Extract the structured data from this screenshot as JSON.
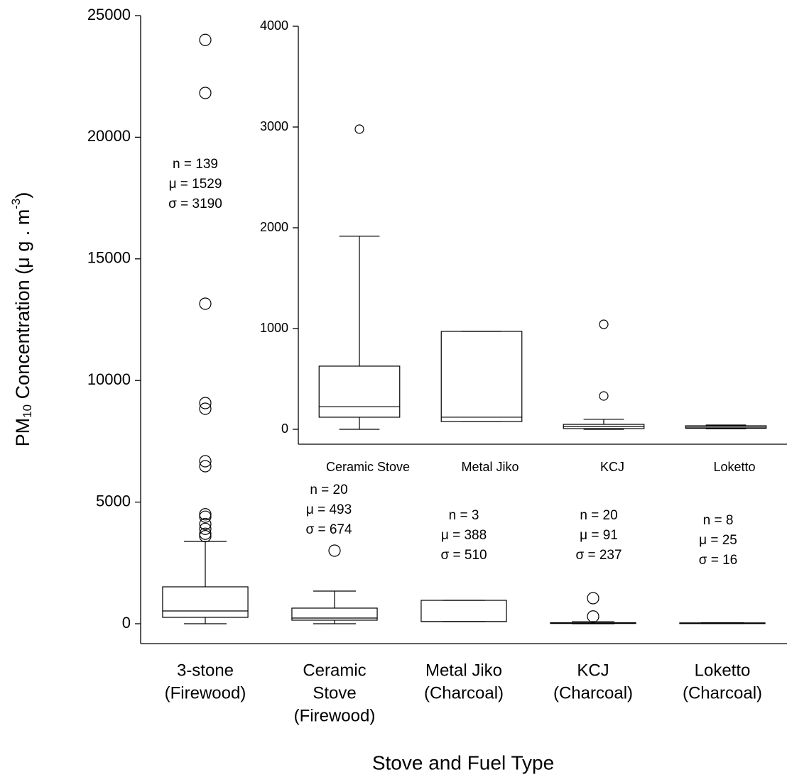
{
  "chart_data": [
    {
      "type": "box",
      "y_label": {
        "main": "PM",
        "sub": "10",
        "middle": " Concentration (μ g . m",
        "sup": "-3",
        "end": ")"
      },
      "x_label": "Stove and Fuel Type",
      "categories": [
        [
          "3-stone",
          "(Firewood)"
        ],
        [
          "Ceramic",
          "Stove",
          "(Firewood)"
        ],
        [
          "Metal Jiko",
          "(Charcoal)"
        ],
        [
          "KCJ",
          "(Charcoal)"
        ],
        [
          "Loketto",
          "(Charcoal)"
        ]
      ],
      "boxes": [
        {
          "whislo": 0,
          "q1": 262,
          "med": 525,
          "q3": 1517,
          "whishi": 3384,
          "fliers": [
            24000,
            21820,
            13156,
            9072,
            8839,
            6680,
            6476,
            4500,
            4400,
            4100,
            3900,
            3700,
            3600
          ]
        },
        {
          "whislo": 0,
          "q1": 146,
          "med": 233,
          "q3": 642,
          "whishi": 1342,
          "fliers": [
            3005
          ]
        },
        {
          "whislo": 88,
          "q1": 88,
          "med": 88,
          "q3": 962,
          "whishi": 962,
          "fliers": []
        },
        {
          "whislo": 0,
          "q1": 10,
          "med": 20,
          "q3": 40,
          "whishi": 90,
          "fliers": [
            300,
            1050
          ]
        },
        {
          "whislo": 5,
          "q1": 10,
          "med": 21,
          "q3": 35,
          "whishi": 42,
          "fliers": []
        }
      ],
      "stats": [
        [
          "n = 139",
          "μ = 1529",
          "σ = 3190"
        ],
        [
          "n = 20",
          "μ = 493",
          "σ = 674"
        ],
        [
          "n = 3",
          "μ = 388",
          "σ = 510"
        ],
        [
          "n = 20",
          "μ = 91",
          "σ = 237"
        ],
        [
          "n = 8",
          "μ = 25",
          "σ = 16"
        ]
      ],
      "ylim": [
        0,
        25000
      ],
      "yticks": [
        0,
        5000,
        10000,
        15000,
        20000,
        25000
      ]
    },
    {
      "type": "box",
      "categories": [
        "Ceramic Stove",
        "Metal Jiko",
        "KCJ",
        "Loketto"
      ],
      "boxes": [
        {
          "whislo": 0,
          "q1": 120,
          "med": 225,
          "q3": 627,
          "whishi": 1916,
          "fliers": [
            2979
          ]
        },
        {
          "whislo": 77,
          "q1": 77,
          "med": 120,
          "q3": 972,
          "whishi": 972,
          "fliers": []
        },
        {
          "whislo": 0,
          "q1": 7,
          "med": 28,
          "q3": 49,
          "whishi": 99,
          "fliers": [
            331,
            1042
          ]
        },
        {
          "whislo": 5,
          "q1": 10,
          "med": 21,
          "q3": 35,
          "whishi": 42,
          "fliers": []
        }
      ],
      "ylim": [
        0,
        4000
      ],
      "yticks": [
        0,
        1000,
        2000,
        3000,
        4000
      ]
    }
  ]
}
